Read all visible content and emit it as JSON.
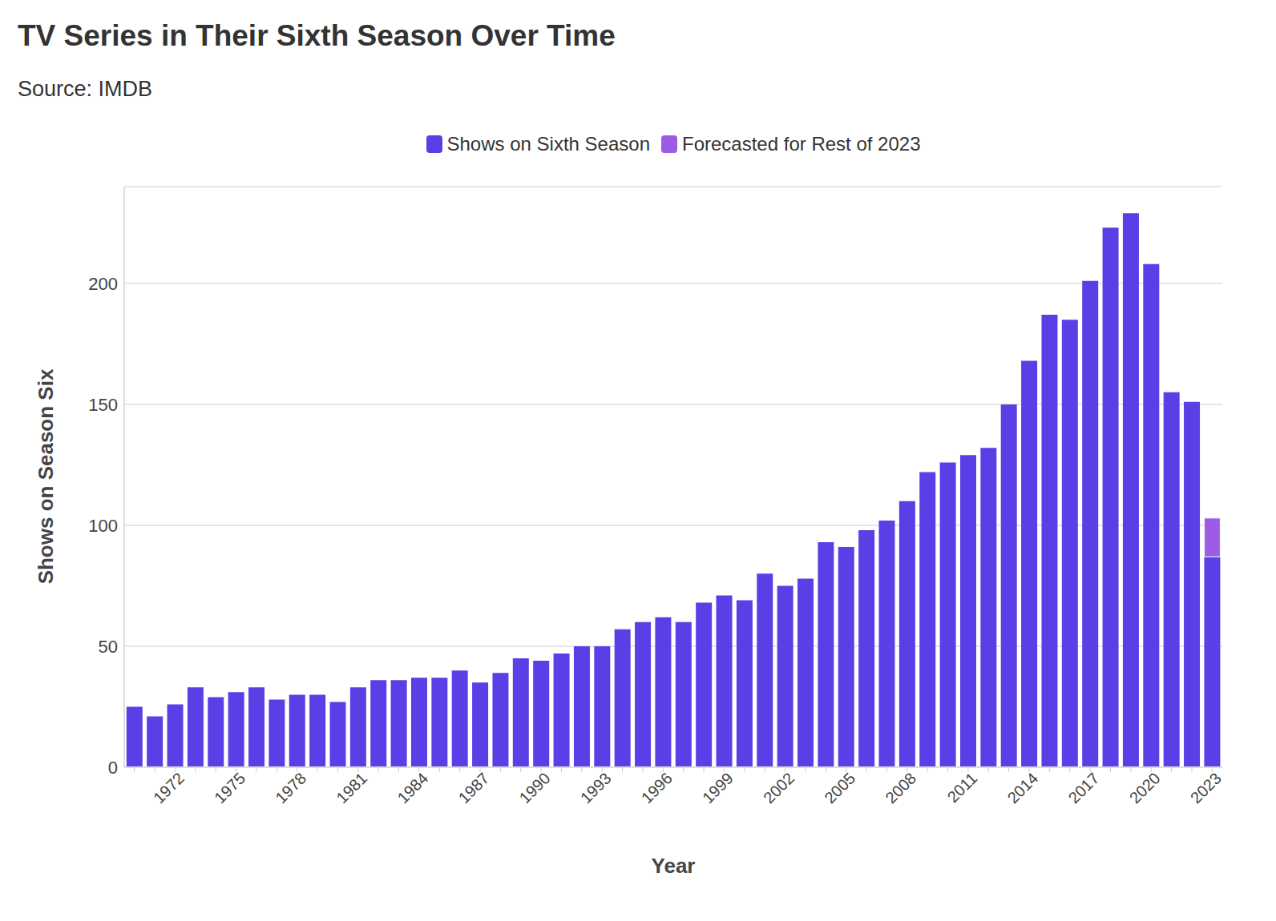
{
  "chart_data": {
    "type": "bar",
    "title": "TV Series in Their Sixth Season Over Time",
    "subtitle": "Source: IMDB",
    "x_label": "Year",
    "y_label": "Shows on Season Six",
    "categories": [
      null,
      null,
      "1972",
      null,
      null,
      "1975",
      null,
      null,
      "1978",
      null,
      null,
      "1981",
      null,
      null,
      "1984",
      null,
      null,
      "1987",
      null,
      null,
      "1990",
      null,
      null,
      "1993",
      null,
      null,
      "1996",
      null,
      null,
      "1999",
      null,
      null,
      "2002",
      null,
      null,
      "2005",
      null,
      null,
      "2008",
      null,
      null,
      "2011",
      null,
      null,
      "2014",
      null,
      null,
      "2017",
      null,
      null,
      "2020",
      null,
      null,
      "2023"
    ],
    "series": [
      {
        "name": "Shows on Sixth Season",
        "color": "#5a3fe6",
        "values": [
          25,
          21,
          26,
          33,
          29,
          31,
          33,
          28,
          30,
          30,
          27,
          33,
          36,
          36,
          37,
          37,
          40,
          35,
          39,
          45,
          44,
          47,
          50,
          50,
          57,
          60,
          62,
          60,
          68,
          71,
          69,
          80,
          75,
          78,
          93,
          91,
          98,
          102,
          110,
          122,
          126,
          129,
          132,
          150,
          168,
          187,
          185,
          201,
          223,
          229,
          208,
          155,
          151,
          87
        ]
      },
      {
        "name": "Forecasted for Rest of 2023",
        "color": "#9c5ce6",
        "values": [
          null,
          null,
          null,
          null,
          null,
          null,
          null,
          null,
          null,
          null,
          null,
          null,
          null,
          null,
          null,
          null,
          null,
          null,
          null,
          null,
          null,
          null,
          null,
          null,
          null,
          null,
          null,
          null,
          null,
          null,
          null,
          null,
          null,
          null,
          null,
          null,
          null,
          null,
          null,
          null,
          null,
          null,
          null,
          null,
          null,
          null,
          null,
          null,
          null,
          null,
          null,
          null,
          null,
          16
        ]
      }
    ],
    "ylim": [
      0,
      240
    ],
    "yticks": [
      0,
      50,
      100,
      150,
      200
    ],
    "grid": true,
    "stacked": true,
    "legend": "top"
  }
}
